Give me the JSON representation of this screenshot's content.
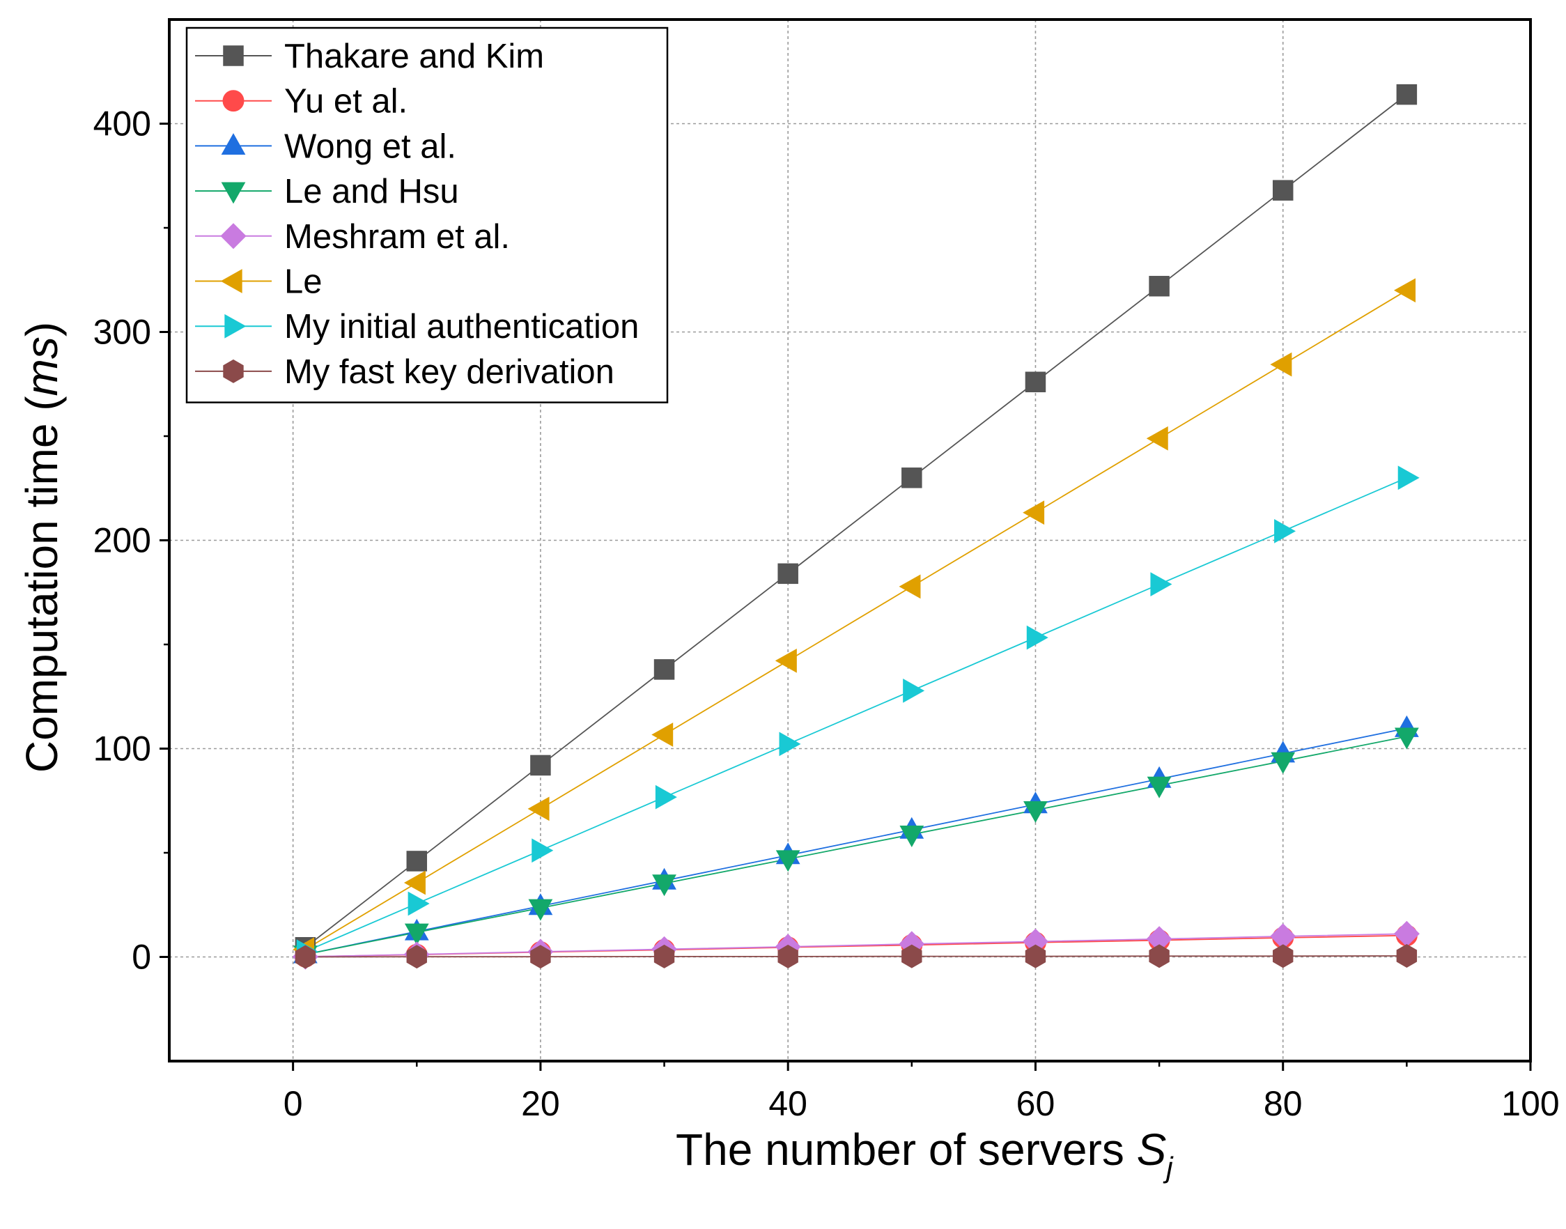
{
  "chart_data": {
    "type": "line",
    "title": "",
    "xlabel": "The number of servers ",
    "xlabel_var": "S",
    "xlabel_sub": "j",
    "ylabel": "Computation time (",
    "ylabel_unit": "ms",
    "ylabel_close": ")",
    "xlim": [
      -10,
      100
    ],
    "ylim": [
      -50,
      450
    ],
    "xticks": [
      0,
      20,
      40,
      60,
      80,
      100
    ],
    "yticks": [
      0,
      100,
      200,
      300,
      400
    ],
    "xtick_labels": [
      "0",
      "20",
      "40",
      "60",
      "80",
      "100"
    ],
    "ytick_labels": [
      "0",
      "100",
      "200",
      "300",
      "400"
    ],
    "grid": true,
    "legend_position": "top-left",
    "x": [
      1,
      10,
      20,
      30,
      40,
      50,
      60,
      70,
      80,
      90
    ],
    "series": [
      {
        "name": "Thakare and Kim",
        "marker": "square",
        "color": "#555555",
        "line_color": "#555555",
        "values": [
          4.6,
          46,
          92,
          138,
          184,
          230,
          276,
          322,
          368,
          414
        ]
      },
      {
        "name": "Yu et al.",
        "marker": "circle",
        "color": "#ff4a4a",
        "line_color": "#ff4a4a",
        "values": [
          0.1,
          1.1,
          2.3,
          3.4,
          4.6,
          5.7,
          6.9,
          8.0,
          9.2,
          10.3
        ]
      },
      {
        "name": "Wong et al.",
        "marker": "triangle-up",
        "color": "#1f6fe0",
        "line_color": "#1f6fe0",
        "values": [
          1.2,
          12.2,
          24.4,
          36.6,
          48.8,
          61,
          73.2,
          85.4,
          97.6,
          109.8
        ]
      },
      {
        "name": "Le and Hsu",
        "marker": "triangle-down",
        "color": "#13a86a",
        "line_color": "#13a86a",
        "values": [
          1.2,
          11.8,
          23.5,
          35.3,
          47,
          58.8,
          70.5,
          82.3,
          94,
          105.8
        ]
      },
      {
        "name": "Meshram et al.",
        "marker": "diamond",
        "color": "#c97be0",
        "line_color": "#c97be0",
        "values": [
          0.1,
          1.2,
          2.5,
          3.7,
          4.9,
          6.2,
          7.4,
          8.6,
          9.9,
          11.1
        ]
      },
      {
        "name": "Le",
        "marker": "triangle-left",
        "color": "#e0a000",
        "line_color": "#e0a000",
        "values": [
          3.6,
          35.6,
          71.1,
          106.7,
          142.2,
          177.8,
          213.3,
          248.9,
          284.4,
          320
        ]
      },
      {
        "name": "My initial authentication",
        "marker": "triangle-right",
        "color": "#19c9d4",
        "line_color": "#19c9d4",
        "values": [
          2.6,
          25.6,
          51.1,
          76.7,
          102.2,
          127.8,
          153.3,
          178.9,
          204.4,
          230
        ]
      },
      {
        "name": "My fast key derivation",
        "marker": "hexagon",
        "color": "#8b4a4a",
        "line_color": "#8b4a4a",
        "values": [
          0.0,
          0.1,
          0.1,
          0.2,
          0.2,
          0.3,
          0.3,
          0.4,
          0.4,
          0.5
        ]
      }
    ]
  }
}
